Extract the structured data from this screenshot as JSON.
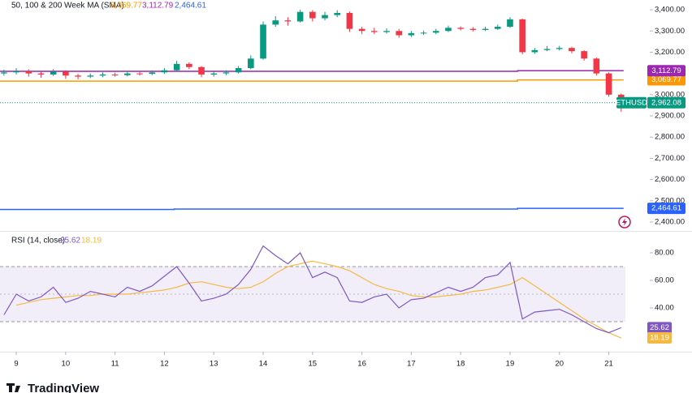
{
  "chart_data": [
    {
      "type": "candlestick",
      "title": "50, 100 & 200 Week MA (SMA)",
      "symbol": "ETHUSD",
      "up_color": "#089981",
      "down_color": "#f23645",
      "xlim": [
        8.67,
        21.83
      ],
      "ylim": [
        2358,
        3446
      ],
      "yticks": [
        {
          "value": 3400,
          "label": "3,400.00"
        },
        {
          "value": 3300,
          "label": "3,300.00"
        },
        {
          "value": 3200,
          "label": "3,200.00"
        },
        {
          "value": 3000,
          "label": "3,000.00"
        },
        {
          "value": 2900,
          "label": "2,900.00"
        },
        {
          "value": 2800,
          "label": "2,800.00"
        },
        {
          "value": 2700,
          "label": "2,700.00"
        },
        {
          "value": 2600,
          "label": "2,600.00"
        },
        {
          "value": 2500,
          "label": "2,500.00"
        },
        {
          "value": 2400,
          "label": "2,400.00"
        }
      ],
      "x": [
        8.75,
        9,
        9.25,
        9.5,
        9.75,
        10,
        10.25,
        10.5,
        10.75,
        11,
        11.25,
        11.5,
        11.75,
        12,
        12.25,
        12.5,
        12.75,
        13,
        13.25,
        13.5,
        13.75,
        14,
        14.25,
        14.5,
        14.75,
        15,
        15.25,
        15.5,
        15.75,
        16,
        16.25,
        16.5,
        16.75,
        17,
        17.25,
        17.5,
        17.75,
        18,
        18.25,
        18.5,
        18.75,
        19,
        19.25,
        19.5,
        19.75,
        20,
        20.25,
        20.5,
        20.75,
        21,
        21.25
      ],
      "open": [
        3100,
        3105,
        3110,
        3100,
        3095,
        3108,
        3090,
        3085,
        3090,
        3095,
        3092,
        3100,
        3098,
        3105,
        3115,
        3145,
        3130,
        3095,
        3100,
        3105,
        3125,
        3170,
        3330,
        3350,
        3345,
        3390,
        3360,
        3375,
        3385,
        3310,
        3300,
        3295,
        3300,
        3280,
        3290,
        3292,
        3300,
        3315,
        3310,
        3305,
        3310,
        3320,
        3355,
        3200,
        3210,
        3215,
        3220,
        3205,
        3170,
        3100,
        3000
      ],
      "high": [
        3118,
        3125,
        3120,
        3108,
        3120,
        3115,
        3098,
        3100,
        3105,
        3104,
        3110,
        3108,
        3115,
        3125,
        3160,
        3152,
        3135,
        3110,
        3115,
        3135,
        3185,
        3345,
        3370,
        3365,
        3400,
        3398,
        3390,
        3398,
        3392,
        3320,
        3315,
        3312,
        3310,
        3300,
        3302,
        3310,
        3325,
        3322,
        3318,
        3320,
        3330,
        3365,
        3358,
        3220,
        3228,
        3230,
        3226,
        3210,
        3175,
        3105,
        3005
      ],
      "low": [
        3090,
        3095,
        3085,
        3080,
        3088,
        3075,
        3072,
        3078,
        3082,
        3085,
        3086,
        3090,
        3092,
        3098,
        3110,
        3120,
        3082,
        3085,
        3092,
        3100,
        3120,
        3165,
        3320,
        3325,
        3340,
        3345,
        3350,
        3365,
        3295,
        3285,
        3285,
        3288,
        3268,
        3272,
        3282,
        3285,
        3295,
        3302,
        3298,
        3300,
        3305,
        3315,
        3190,
        3192,
        3205,
        3208,
        3195,
        3160,
        3090,
        2990,
        2920
      ],
      "close": [
        3105,
        3110,
        3100,
        3095,
        3108,
        3090,
        3085,
        3090,
        3095,
        3092,
        3100,
        3098,
        3105,
        3115,
        3145,
        3130,
        3095,
        3100,
        3105,
        3125,
        3170,
        3330,
        3350,
        3345,
        3390,
        3360,
        3375,
        3385,
        3310,
        3300,
        3295,
        3300,
        3280,
        3290,
        3292,
        3300,
        3315,
        3310,
        3305,
        3310,
        3320,
        3355,
        3200,
        3210,
        3215,
        3220,
        3205,
        3170,
        3100,
        3000,
        2962.08
      ],
      "last_label": "2,962.08",
      "lines": [
        {
          "color": "#ff9800",
          "x": [
            8.67,
            19.15,
            19.15,
            21.3
          ],
          "values": [
            3064,
            3064,
            3069.77,
            3069.77
          ],
          "last_label": "3,069.77"
        },
        {
          "color": "#9c27b0",
          "x": [
            8.67,
            19.15,
            19.15,
            21.3
          ],
          "values": [
            3110,
            3110,
            3112.79,
            3112.79
          ],
          "last_label": "3,112.79"
        },
        {
          "color": "#2962ff",
          "x": [
            8.67,
            12.2,
            12.2,
            19.15,
            19.15,
            21.3
          ],
          "values": [
            2459,
            2459,
            2461,
            2461,
            2464.61,
            2464.61
          ],
          "last_label": "2,464.61"
        }
      ]
    },
    {
      "type": "line",
      "title": "RSI (14, close)",
      "xlim": [
        8.67,
        21.83
      ],
      "ylim": [
        9.4,
        94.7
      ],
      "xticks": [
        9,
        10,
        11,
        12,
        13,
        14,
        15,
        16,
        17,
        18,
        19,
        20,
        21
      ],
      "yticks": [
        {
          "value": 80,
          "label": "80.00"
        },
        {
          "value": 60,
          "label": "60.00"
        },
        {
          "value": 40,
          "label": "40.00"
        }
      ],
      "band": [
        30,
        70
      ],
      "midline": 50,
      "x": [
        8.75,
        9,
        9.25,
        9.5,
        9.75,
        10,
        10.25,
        10.5,
        10.75,
        11,
        11.25,
        11.5,
        11.75,
        12,
        12.25,
        12.5,
        12.75,
        13,
        13.25,
        13.5,
        13.75,
        14,
        14.25,
        14.5,
        14.75,
        15,
        15.25,
        15.5,
        15.75,
        16,
        16.25,
        16.5,
        16.75,
        17,
        17.25,
        17.5,
        17.75,
        18,
        18.25,
        18.5,
        18.75,
        19,
        19.25,
        19.5,
        19.75,
        20,
        20.25,
        20.5,
        20.75,
        21,
        21.25
      ],
      "series": [
        {
          "color": "#7e57c2",
          "values": [
            35,
            50,
            45,
            48,
            55,
            44,
            47,
            52,
            50,
            48,
            55,
            52,
            56,
            63,
            70,
            58,
            45,
            47,
            50,
            57,
            68,
            85,
            78,
            72,
            80,
            62,
            66,
            62,
            45,
            44,
            48,
            50,
            40,
            46,
            47,
            51,
            55,
            52,
            55,
            62,
            64,
            73,
            32,
            37,
            38,
            39,
            35,
            30,
            25,
            22,
            25.62
          ],
          "last_label": "25.62"
        },
        {
          "color": "#f5b942",
          "values": [
            null,
            42,
            44,
            46,
            47,
            48,
            49,
            49,
            50,
            50,
            50,
            51,
            52,
            53,
            55,
            58,
            59,
            57,
            55,
            54,
            55,
            59,
            65,
            70,
            72,
            74,
            72,
            70,
            67,
            62,
            57,
            54,
            52,
            49,
            48,
            48,
            49,
            50,
            52,
            53,
            55,
            57,
            62,
            56,
            50,
            44,
            38,
            32,
            27,
            22,
            18.19
          ],
          "last_label": "18.19"
        }
      ]
    }
  ],
  "brand": "TradingView"
}
